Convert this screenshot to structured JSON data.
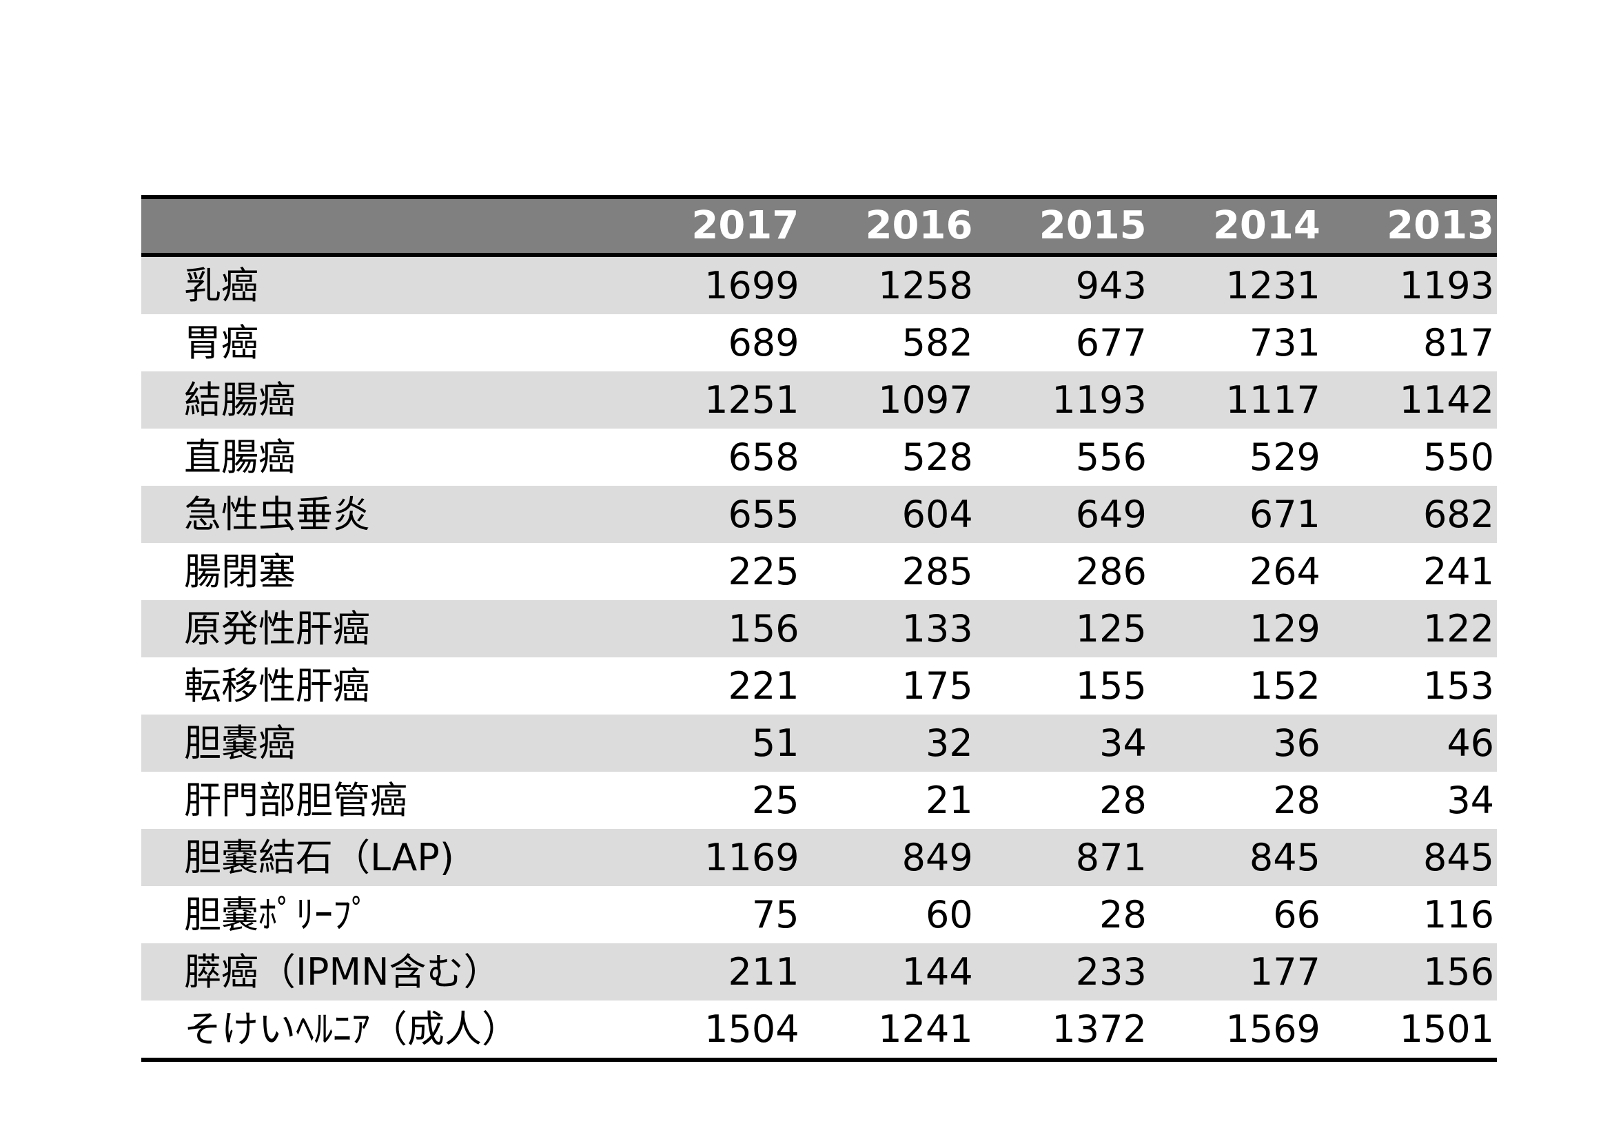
{
  "table": {
    "years": [
      "2017",
      "2016",
      "2015",
      "2014",
      "2013"
    ],
    "rows": [
      {
        "label": "乳癌",
        "values": [
          "1699",
          "1258",
          "943",
          "1231",
          "1193"
        ]
      },
      {
        "label": "胃癌",
        "values": [
          "689",
          "582",
          "677",
          "731",
          "817"
        ]
      },
      {
        "label": "結腸癌",
        "values": [
          "1251",
          "1097",
          "1193",
          "1117",
          "1142"
        ]
      },
      {
        "label": "直腸癌",
        "values": [
          "658",
          "528",
          "556",
          "529",
          "550"
        ]
      },
      {
        "label": "急性虫垂炎",
        "values": [
          "655",
          "604",
          "649",
          "671",
          "682"
        ]
      },
      {
        "label": "腸閉塞",
        "values": [
          "225",
          "285",
          "286",
          "264",
          "241"
        ]
      },
      {
        "label": "原発性肝癌",
        "values": [
          "156",
          "133",
          "125",
          "129",
          "122"
        ]
      },
      {
        "label": "転移性肝癌",
        "values": [
          "221",
          "175",
          "155",
          "152",
          "153"
        ]
      },
      {
        "label": "胆嚢癌",
        "values": [
          "51",
          "32",
          "34",
          "36",
          "46"
        ]
      },
      {
        "label": "肝門部胆管癌",
        "values": [
          "25",
          "21",
          "28",
          "28",
          "34"
        ]
      },
      {
        "label": "胆嚢結石（LAP)",
        "values": [
          "1169",
          "849",
          "871",
          "845",
          "845"
        ]
      },
      {
        "label": "胆嚢ﾎﾟﾘｰﾌﾟ",
        "values": [
          "75",
          "60",
          "28",
          "66",
          "116"
        ]
      },
      {
        "label": "膵癌（IPMN含む）",
        "values": [
          "211",
          "144",
          "233",
          "177",
          "156"
        ]
      },
      {
        "label": "そけいﾍﾙﾆｱ（成人）",
        "values": [
          "1504",
          "1241",
          "1372",
          "1569",
          "1501"
        ]
      }
    ]
  }
}
